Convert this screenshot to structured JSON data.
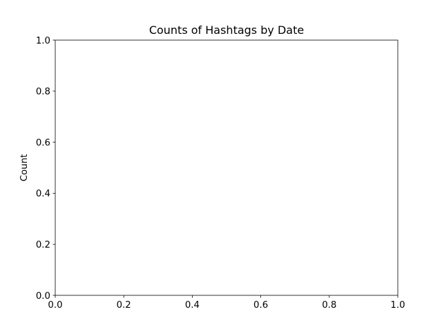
{
  "chart_data": {
    "type": "line",
    "title": "Counts of Hashtags by Date",
    "xlabel": "",
    "ylabel": "Count",
    "series": [],
    "xlim": [
      0.0,
      1.0
    ],
    "ylim": [
      0.0,
      1.0
    ],
    "x_ticks": [
      "0.0",
      "0.2",
      "0.4",
      "0.6",
      "0.8",
      "1.0"
    ],
    "y_ticks": [
      "0.0",
      "0.2",
      "0.4",
      "0.6",
      "0.8",
      "1.0"
    ],
    "grid": false,
    "legend": "none"
  }
}
